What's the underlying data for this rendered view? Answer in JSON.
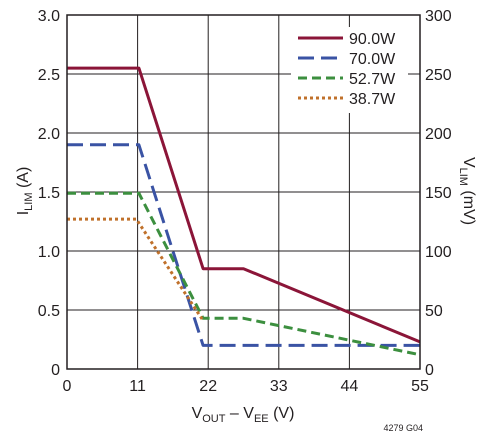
{
  "chart_data": {
    "type": "line",
    "title": "",
    "xlabel": {
      "main": "V",
      "sub1": "OUT",
      "mid": " – V",
      "sub2": "EE",
      "unit": " (V)"
    },
    "ylabel_left": {
      "main": "I",
      "sub": "LIM",
      "unit": " (A)"
    },
    "ylabel_right": {
      "main": "V",
      "sub": "LIM",
      "unit": " (mV)"
    },
    "xlim": [
      0,
      55
    ],
    "ylim_left": [
      0,
      3.0
    ],
    "ylim_right": [
      0,
      300
    ],
    "x_ticks": [
      "0",
      "11",
      "22",
      "33",
      "44",
      "55"
    ],
    "y_left_ticks": [
      "0",
      "0.5",
      "1.0",
      "1.5",
      "2.0",
      "2.5",
      "3.0"
    ],
    "y_right_ticks": [
      "0",
      "50",
      "100",
      "150",
      "200",
      "250",
      "300"
    ],
    "grid": true,
    "legend_position": "top-right",
    "note": "4279 G04",
    "series": [
      {
        "name": "90.0W",
        "color": "#8b1538",
        "dash": "solid",
        "points": [
          [
            0,
            2.55
          ],
          [
            11.2,
            2.55
          ],
          [
            21.2,
            0.85
          ],
          [
            27.5,
            0.85
          ],
          [
            55,
            0.23
          ]
        ]
      },
      {
        "name": "70.0W",
        "color": "#3a53a4",
        "dash": "long",
        "points": [
          [
            0,
            1.9
          ],
          [
            11.2,
            1.9
          ],
          [
            21.2,
            0.2
          ],
          [
            55,
            0.2
          ]
        ]
      },
      {
        "name": "52.7W",
        "color": "#3c8f3f",
        "dash": "medium",
        "points": [
          [
            0,
            1.49
          ],
          [
            11.2,
            1.49
          ],
          [
            21.2,
            0.43
          ],
          [
            27.5,
            0.43
          ],
          [
            55,
            0.12
          ]
        ]
      },
      {
        "name": "38.7W",
        "color": "#c0712b",
        "dash": "dot",
        "points": [
          [
            0,
            1.27
          ],
          [
            10.8,
            1.27
          ],
          [
            21.2,
            0.41
          ]
        ]
      }
    ]
  }
}
